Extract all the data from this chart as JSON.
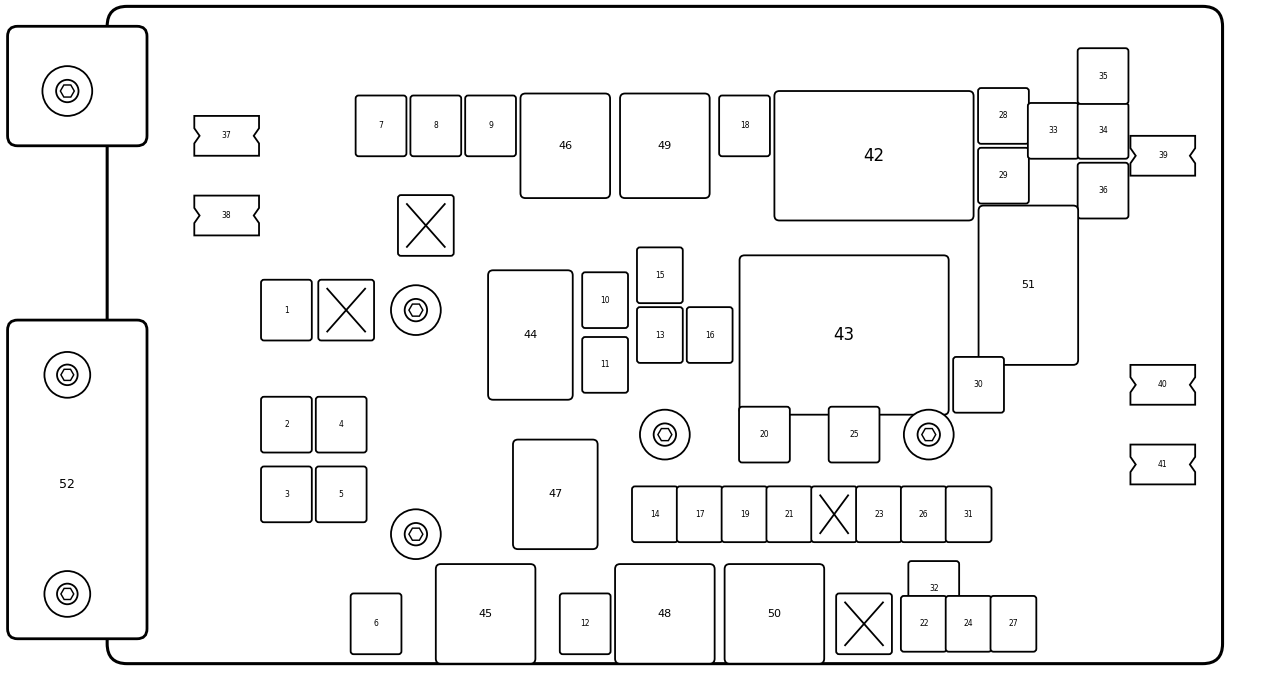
{
  "bg_color": "#ffffff",
  "line_color": "#000000",
  "fig_width": 12.61,
  "fig_height": 6.76
}
